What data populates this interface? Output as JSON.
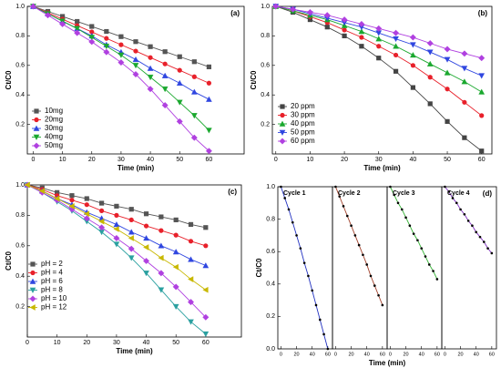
{
  "chart_data": [
    {
      "type": "line",
      "label": "(a)",
      "xlabel": "Time (min)",
      "ylabel": "Ct/C0",
      "legend": "lower left",
      "x": [
        0,
        5,
        10,
        15,
        20,
        25,
        30,
        35,
        40,
        45,
        50,
        55,
        60
      ],
      "xlim": [
        -2,
        72
      ],
      "xticks": [
        0,
        10,
        20,
        30,
        40,
        50,
        60
      ],
      "ylim": [
        0,
        1
      ],
      "yticks": [
        0.2,
        0.4,
        0.6,
        0.8,
        {
          "value": 1,
          "label": "1.0"
        }
      ],
      "series": [
        {
          "name": "10mg",
          "color": "#555555",
          "marker": "square",
          "values": [
            1,
            0.966,
            0.932,
            0.898,
            0.864,
            0.83,
            0.795,
            0.761,
            0.727,
            0.693,
            0.659,
            0.625,
            0.59
          ]
        },
        {
          "name": "20mg",
          "color": "#e8202a",
          "marker": "circle",
          "values": [
            1,
            0.957,
            0.913,
            0.87,
            0.827,
            0.783,
            0.74,
            0.697,
            0.653,
            0.61,
            0.567,
            0.523,
            0.48
          ]
        },
        {
          "name": "30mg",
          "color": "#2f46e0",
          "marker": "triangle-up",
          "values": [
            1,
            0.95,
            0.9,
            0.85,
            0.8,
            0.74,
            0.69,
            0.64,
            0.58,
            0.53,
            0.48,
            0.42,
            0.37
          ]
        },
        {
          "name": "40mg",
          "color": "#1aa82e",
          "marker": "triangle-down",
          "values": [
            1,
            0.95,
            0.9,
            0.85,
            0.79,
            0.73,
            0.67,
            0.6,
            0.52,
            0.44,
            0.35,
            0.26,
            0.16
          ]
        },
        {
          "name": "50mg",
          "color": "#b040e0",
          "marker": "diamond",
          "values": [
            1,
            0.94,
            0.88,
            0.82,
            0.76,
            0.69,
            0.62,
            0.54,
            0.44,
            0.33,
            0.22,
            0.11,
            0.02
          ]
        }
      ]
    },
    {
      "type": "line",
      "label": "(b)",
      "xlabel": "Time (min)",
      "ylabel": "Ct/C0",
      "legend": "lower left",
      "x": [
        0,
        5,
        10,
        15,
        20,
        25,
        30,
        35,
        40,
        45,
        50,
        55,
        60
      ],
      "xlim": [
        -1,
        63
      ],
      "xticks": [
        0,
        10,
        20,
        30,
        40,
        50,
        60
      ],
      "ylim": [
        0,
        1
      ],
      "yticks": [
        0.2,
        0.4,
        0.6,
        0.8,
        {
          "value": 1,
          "label": "1.0"
        }
      ],
      "series": [
        {
          "name": "20 ppm",
          "color": "#444444",
          "marker": "square",
          "values": [
            1,
            0.96,
            0.91,
            0.86,
            0.8,
            0.73,
            0.65,
            0.56,
            0.45,
            0.34,
            0.22,
            0.11,
            0.02
          ]
        },
        {
          "name": "30 ppm",
          "color": "#e8202a",
          "marker": "circle",
          "values": [
            1,
            0.97,
            0.93,
            0.89,
            0.84,
            0.79,
            0.73,
            0.67,
            0.6,
            0.52,
            0.44,
            0.35,
            0.26
          ]
        },
        {
          "name": "40 ppm",
          "color": "#1aa82e",
          "marker": "triangle-up",
          "values": [
            1,
            0.97,
            0.94,
            0.91,
            0.87,
            0.83,
            0.78,
            0.73,
            0.67,
            0.61,
            0.55,
            0.49,
            0.42
          ]
        },
        {
          "name": "50 ppm",
          "color": "#2f46e0",
          "marker": "triangle-down",
          "values": [
            1,
            0.98,
            0.95,
            0.92,
            0.89,
            0.86,
            0.82,
            0.78,
            0.74,
            0.69,
            0.64,
            0.58,
            0.53
          ]
        },
        {
          "name": "60 ppm",
          "color": "#b040e0",
          "marker": "diamond",
          "values": [
            1,
            0.98,
            0.96,
            0.94,
            0.91,
            0.88,
            0.85,
            0.82,
            0.79,
            0.75,
            0.71,
            0.68,
            0.65
          ]
        }
      ]
    },
    {
      "type": "line",
      "label": "(c)",
      "xlabel": "Time (min)",
      "ylabel": "Ct/C0",
      "legend": "lower left",
      "x": [
        0,
        5,
        10,
        15,
        20,
        25,
        30,
        35,
        40,
        45,
        50,
        55,
        60
      ],
      "xlim": [
        0,
        72
      ],
      "xticks": [
        0,
        10,
        20,
        30,
        40,
        50,
        60
      ],
      "ylim": [
        0,
        1
      ],
      "yticks": [
        0.2,
        0.4,
        0.6,
        0.8,
        {
          "value": 1,
          "label": "1.0"
        }
      ],
      "series": [
        {
          "name": "pH = 2",
          "color": "#555555",
          "marker": "square",
          "values": [
            1,
            0.98,
            0.95,
            0.93,
            0.91,
            0.88,
            0.86,
            0.84,
            0.81,
            0.79,
            0.77,
            0.74,
            0.72
          ]
        },
        {
          "name": "pH = 4",
          "color": "#e8202a",
          "marker": "circle",
          "values": [
            1,
            0.97,
            0.93,
            0.9,
            0.87,
            0.83,
            0.8,
            0.77,
            0.73,
            0.7,
            0.67,
            0.63,
            0.6
          ]
        },
        {
          "name": "pH = 6",
          "color": "#2f46e0",
          "marker": "triangle-up",
          "values": [
            1,
            0.96,
            0.91,
            0.87,
            0.82,
            0.78,
            0.74,
            0.69,
            0.65,
            0.6,
            0.56,
            0.51,
            0.47
          ]
        },
        {
          "name": "pH = 8",
          "color": "#2aa0a0",
          "marker": "triangle-down",
          "values": [
            1,
            0.95,
            0.89,
            0.83,
            0.76,
            0.69,
            0.61,
            0.52,
            0.42,
            0.31,
            0.2,
            0.1,
            0.02
          ]
        },
        {
          "name": "pH = 10",
          "color": "#b040e0",
          "marker": "diamond",
          "values": [
            1,
            0.95,
            0.9,
            0.84,
            0.78,
            0.72,
            0.65,
            0.58,
            0.5,
            0.42,
            0.33,
            0.23,
            0.13
          ]
        },
        {
          "name": "pH = 12",
          "color": "#c8b800",
          "marker": "triangle-left",
          "values": [
            1,
            0.96,
            0.91,
            0.86,
            0.81,
            0.76,
            0.71,
            0.65,
            0.59,
            0.52,
            0.46,
            0.38,
            0.31
          ]
        }
      ]
    },
    {
      "type": "line",
      "facets": true,
      "label": "(d)",
      "xlabel": "Time (min)",
      "ylabel": "Ct/C0",
      "x": [
        0,
        5,
        10,
        15,
        20,
        25,
        30,
        35,
        40,
        45,
        50,
        55,
        60
      ],
      "xlim": [
        -4,
        66
      ],
      "xticks": [
        0,
        20,
        40,
        60
      ],
      "ylim": [
        0,
        1
      ],
      "yticks": [
        {
          "value": 0,
          "label": "0.0"
        },
        0.2,
        0.4,
        0.6,
        0.8,
        {
          "value": 1,
          "label": "1.0"
        }
      ],
      "series": [
        {
          "name": "Cycle 1",
          "color": "#2030c0",
          "values": [
            1,
            0.93,
            0.86,
            0.78,
            0.7,
            0.62,
            0.53,
            0.45,
            0.36,
            0.27,
            0.18,
            0.09,
            0.0
          ]
        },
        {
          "name": "Cycle 2",
          "color": "#a0402a",
          "values": [
            1,
            0.94,
            0.88,
            0.82,
            0.76,
            0.7,
            0.64,
            0.58,
            0.52,
            0.45,
            0.39,
            0.33,
            0.27
          ]
        },
        {
          "name": "Cycle 3",
          "color": "#30b030",
          "values": [
            1,
            0.95,
            0.9,
            0.86,
            0.81,
            0.76,
            0.71,
            0.67,
            0.62,
            0.57,
            0.52,
            0.48,
            0.43
          ]
        },
        {
          "name": "Cycle 4",
          "color": "#8030c0",
          "values": [
            1,
            0.97,
            0.93,
            0.9,
            0.86,
            0.83,
            0.79,
            0.76,
            0.72,
            0.69,
            0.66,
            0.62,
            0.59
          ]
        }
      ]
    }
  ]
}
